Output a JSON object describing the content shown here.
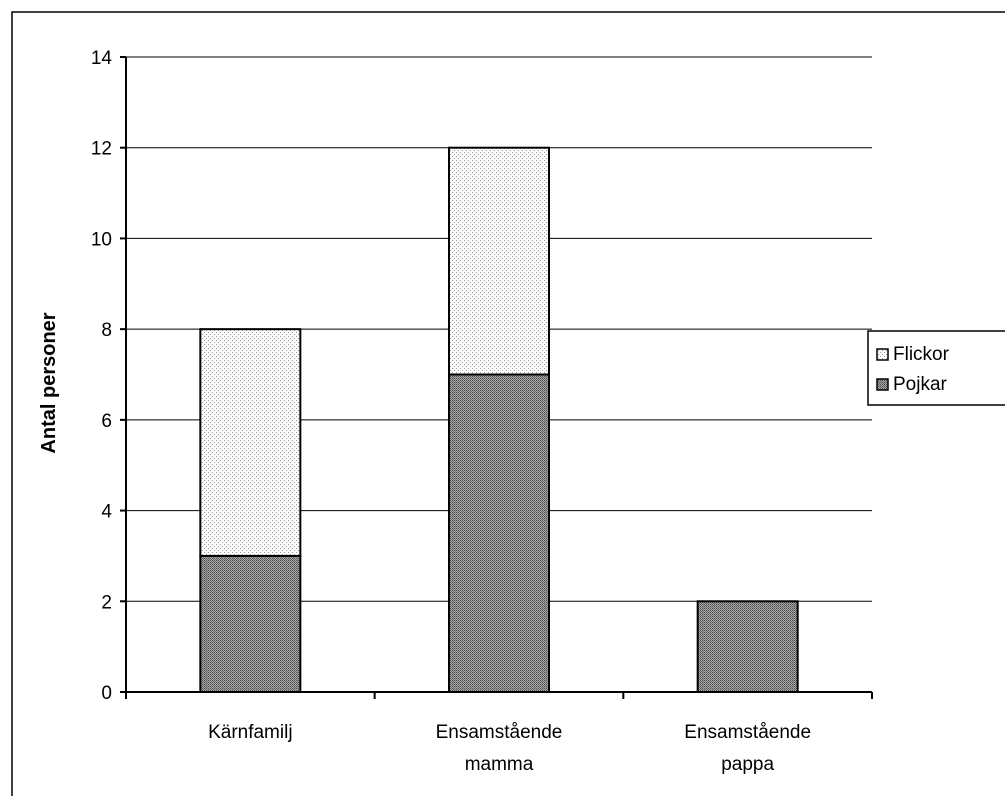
{
  "chart_data": {
    "type": "bar",
    "stacked": true,
    "categories": [
      [
        "Kärnfamilj"
      ],
      [
        "Ensamstående",
        "mamma"
      ],
      [
        "Ensamstående",
        "pappa"
      ]
    ],
    "series": [
      {
        "name": "Pojkar",
        "values": [
          3,
          7,
          2
        ],
        "color": "#8c8c8c",
        "pattern": "dense-dots"
      },
      {
        "name": "Flickor",
        "values": [
          5,
          5,
          0
        ],
        "color": "#f0f0f0",
        "pattern": "sparse-dots"
      }
    ],
    "title": "",
    "xlabel": "",
    "ylabel": "Antal personer",
    "ylim": [
      0,
      14
    ],
    "yticks": [
      0,
      2,
      4,
      6,
      8,
      10,
      12,
      14
    ],
    "grid": true,
    "legend": "right",
    "legend_order": [
      "Flickor",
      "Pojkar"
    ]
  }
}
